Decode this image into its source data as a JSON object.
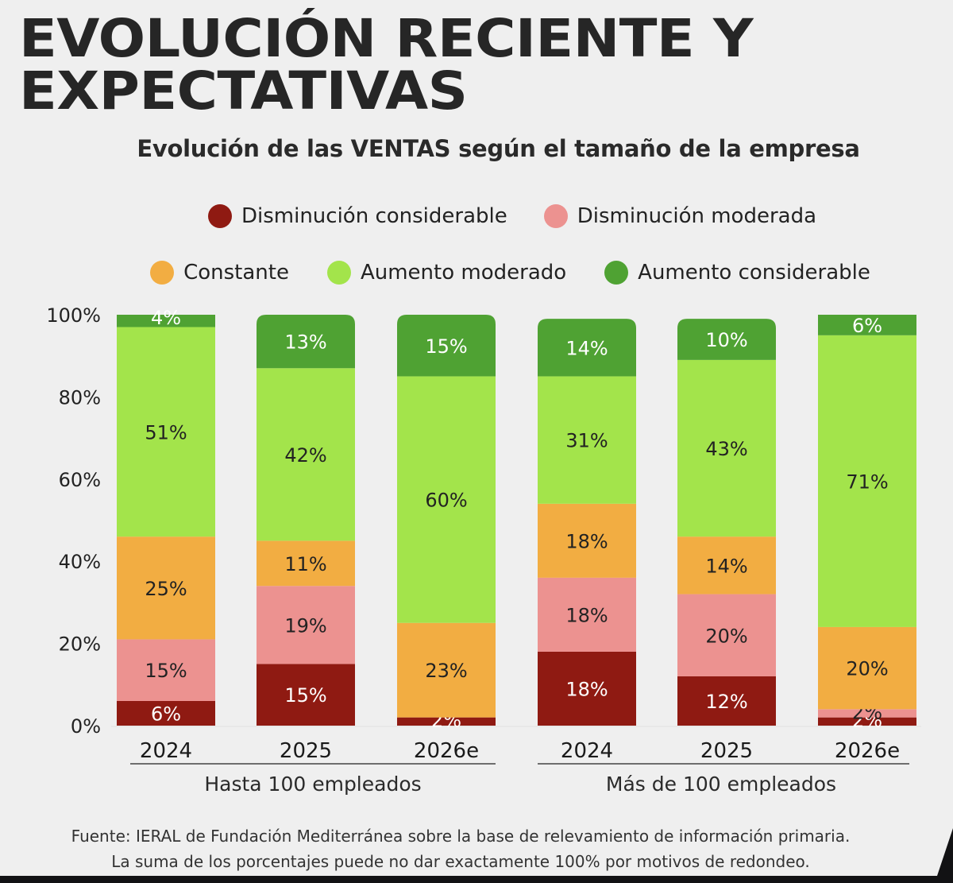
{
  "header": {
    "title_line1": "EVOLUCIÓN RECIENTE Y",
    "title_line2": "EXPECTATIVAS"
  },
  "legend": [
    {
      "label": "Disminución considerable",
      "color": "#8f1a12"
    },
    {
      "label": "Disminución moderada",
      "color": "#ec9290"
    },
    {
      "label": "Constante",
      "color": "#f2ad42"
    },
    {
      "label": "Aumento moderado",
      "color": "#a3e44b"
    },
    {
      "label": "Aumento considerable",
      "color": "#4fa233"
    }
  ],
  "chart_data": {
    "type": "bar",
    "stacked": true,
    "title": "Evolución de las VENTAS según el tamaño de la empresa",
    "xlabel": "",
    "ylabel": "",
    "ylim": [
      0,
      100
    ],
    "y_ticks": [
      "0%",
      "20%",
      "40%",
      "60%",
      "80%",
      "100%"
    ],
    "y_tick_values": [
      0,
      20,
      40,
      60,
      80,
      100
    ],
    "legend_position": "top",
    "grid": false,
    "groups": [
      {
        "label": "Hasta 100 empleados",
        "categories": [
          "2024",
          "2025",
          "2026e"
        ]
      },
      {
        "label": "Más de 100 empleados",
        "categories": [
          "2024",
          "2025",
          "2026e"
        ]
      }
    ],
    "categories": [
      "Hasta 100 empleados 2024",
      "Hasta 100 empleados 2025",
      "Hasta 100 empleados 2026e",
      "Más de 100 empleados 2024",
      "Más de 100 empleados 2025",
      "Más de 100 empleados 2026e"
    ],
    "series": [
      {
        "name": "Disminución considerable",
        "color": "#8f1a12",
        "label_color": "#ffffff",
        "values": [
          6,
          15,
          2,
          18,
          12,
          2
        ]
      },
      {
        "name": "Disminución moderada",
        "color": "#ec9290",
        "label_color": "#222222",
        "values": [
          15,
          19,
          0,
          18,
          20,
          2
        ]
      },
      {
        "name": "Constante",
        "color": "#f2ad42",
        "label_color": "#222222",
        "values": [
          25,
          11,
          23,
          18,
          14,
          20
        ]
      },
      {
        "name": "Aumento moderado",
        "color": "#a3e44b",
        "label_color": "#222222",
        "values": [
          51,
          42,
          60,
          31,
          43,
          71
        ]
      },
      {
        "name": "Aumento considerable",
        "color": "#4fa233",
        "label_color": "#ffffff",
        "values": [
          4,
          13,
          15,
          14,
          10,
          6
        ]
      }
    ]
  },
  "footer": {
    "source": "Fuente: IERAL de Fundación Mediterránea sobre la base de relevamiento de información primaria.",
    "note": "La suma de los porcentajes puede no dar exactamente 100% por motivos de redondeo."
  }
}
